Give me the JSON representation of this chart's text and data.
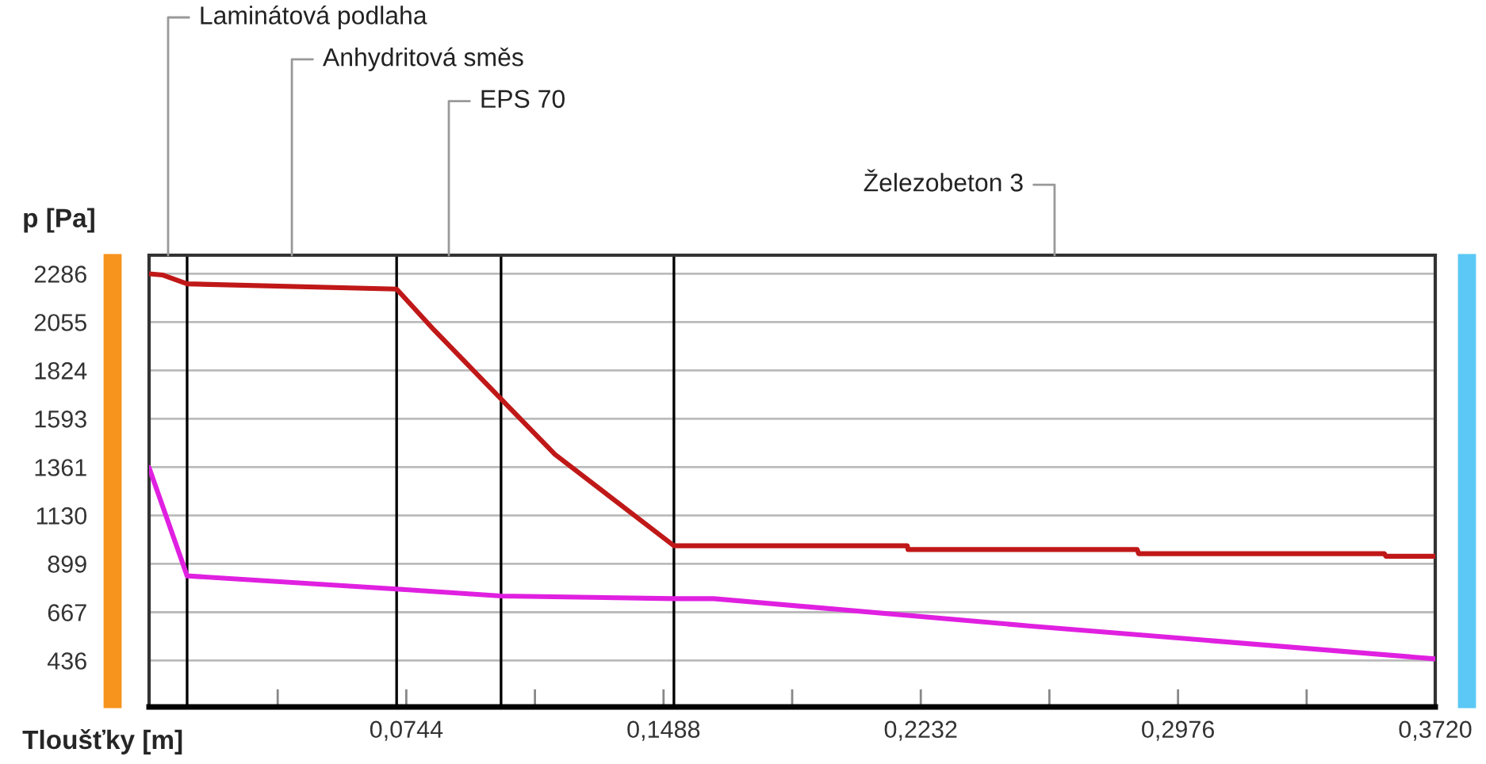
{
  "chart_data": {
    "type": "line",
    "ylabel": "p [Pa]",
    "xlabel": "Tloušťky [m]",
    "xlim": [
      0,
      0.372
    ],
    "ylim": [
      214,
      2375
    ],
    "xticks": [
      {
        "value": 0.0372,
        "label": null
      },
      {
        "value": 0.0744,
        "label": "0,0744"
      },
      {
        "value": 0.1116,
        "label": null
      },
      {
        "value": 0.1488,
        "label": "0,1488"
      },
      {
        "value": 0.186,
        "label": null
      },
      {
        "value": 0.2232,
        "label": "0,2232"
      },
      {
        "value": 0.2604,
        "label": null
      },
      {
        "value": 0.2976,
        "label": "0,2976"
      },
      {
        "value": 0.3348,
        "label": null
      },
      {
        "value": 0.372,
        "label": "0,3720"
      }
    ],
    "yticks": [
      436,
      667,
      899,
      1130,
      1361,
      1593,
      1824,
      2055,
      2286
    ],
    "grid": "y",
    "marker": "none",
    "line_style": "solid",
    "series": [
      {
        "color": "#c01818",
        "x": [
          0,
          0.004,
          0.011,
          0.0716,
          0.0825,
          0.1018,
          0.1174,
          0.1518,
          0.2193,
          0.2195,
          0.2858,
          0.2862,
          0.3573,
          0.3577,
          0.372
        ],
        "values": [
          2286,
          2280,
          2238,
          2213,
          2016,
          1687,
          1422,
          985,
          985,
          967,
          967,
          947,
          947,
          935,
          935
        ]
      },
      {
        "color": "#e020e0",
        "x": [
          0,
          0.011,
          0.0716,
          0.1018,
          0.1518,
          0.1633,
          0.255,
          0.372
        ],
        "values": [
          1359,
          841,
          778,
          745,
          732,
          732,
          601,
          444
        ]
      }
    ],
    "ref_lines": [
      {
        "axis": "x",
        "value": 0.011,
        "color": "#000000"
      },
      {
        "axis": "x",
        "value": 0.0716,
        "color": "#000000"
      },
      {
        "axis": "x",
        "value": 0.1018,
        "color": "#000000"
      },
      {
        "axis": "x",
        "value": 0.1518,
        "color": "#000000"
      }
    ],
    "annotations": [
      "Laminátová podlaha",
      "Anhydritová směs",
      "EPS 70",
      "Železobeton 3"
    ]
  }
}
